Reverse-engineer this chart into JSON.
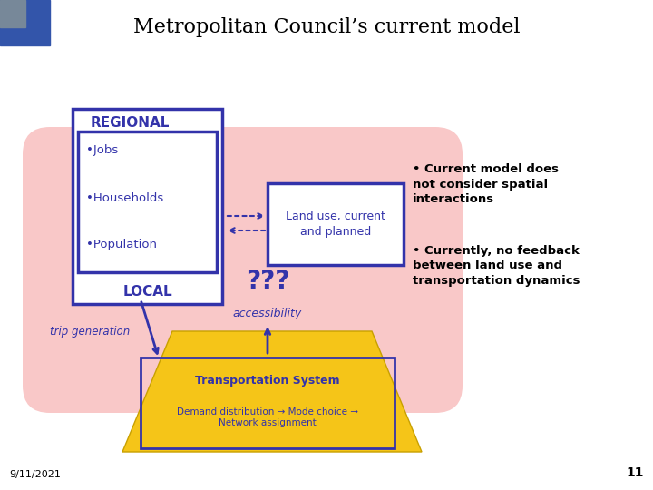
{
  "title": "Metropolitan Council’s current model",
  "bg_color": "#ffffff",
  "title_fontsize": 16,
  "title_color": "#000000",
  "regional_label": "REGIONAL",
  "regional_items": [
    "•Jobs",
    "•Households",
    "•Population"
  ],
  "local_label": "LOCAL",
  "landuse_text": "Land use, current\nand planned",
  "question_marks": "???",
  "accessibility_text": "accessibility",
  "trip_generation_text": "trip generation",
  "transport_box_text": "Transportation System",
  "transport_sub_text": "Demand distribution → Mode choice →\nNetwork assignment",
  "bullet1": "• Current model does\nnot consider spatial\ninteractions",
  "bullet2": "• Currently, no feedback\nbetween land use and\ntransportation dynamics",
  "date_text": "9/11/2021",
  "page_num": "11",
  "blue_color": "#3333aa",
  "gold_color": "#f5c518",
  "pink_color": "#f9c8c8",
  "corner_blue": "#3355aa",
  "corner_gray": "#778899",
  "bullet_fontsize": 9.5
}
